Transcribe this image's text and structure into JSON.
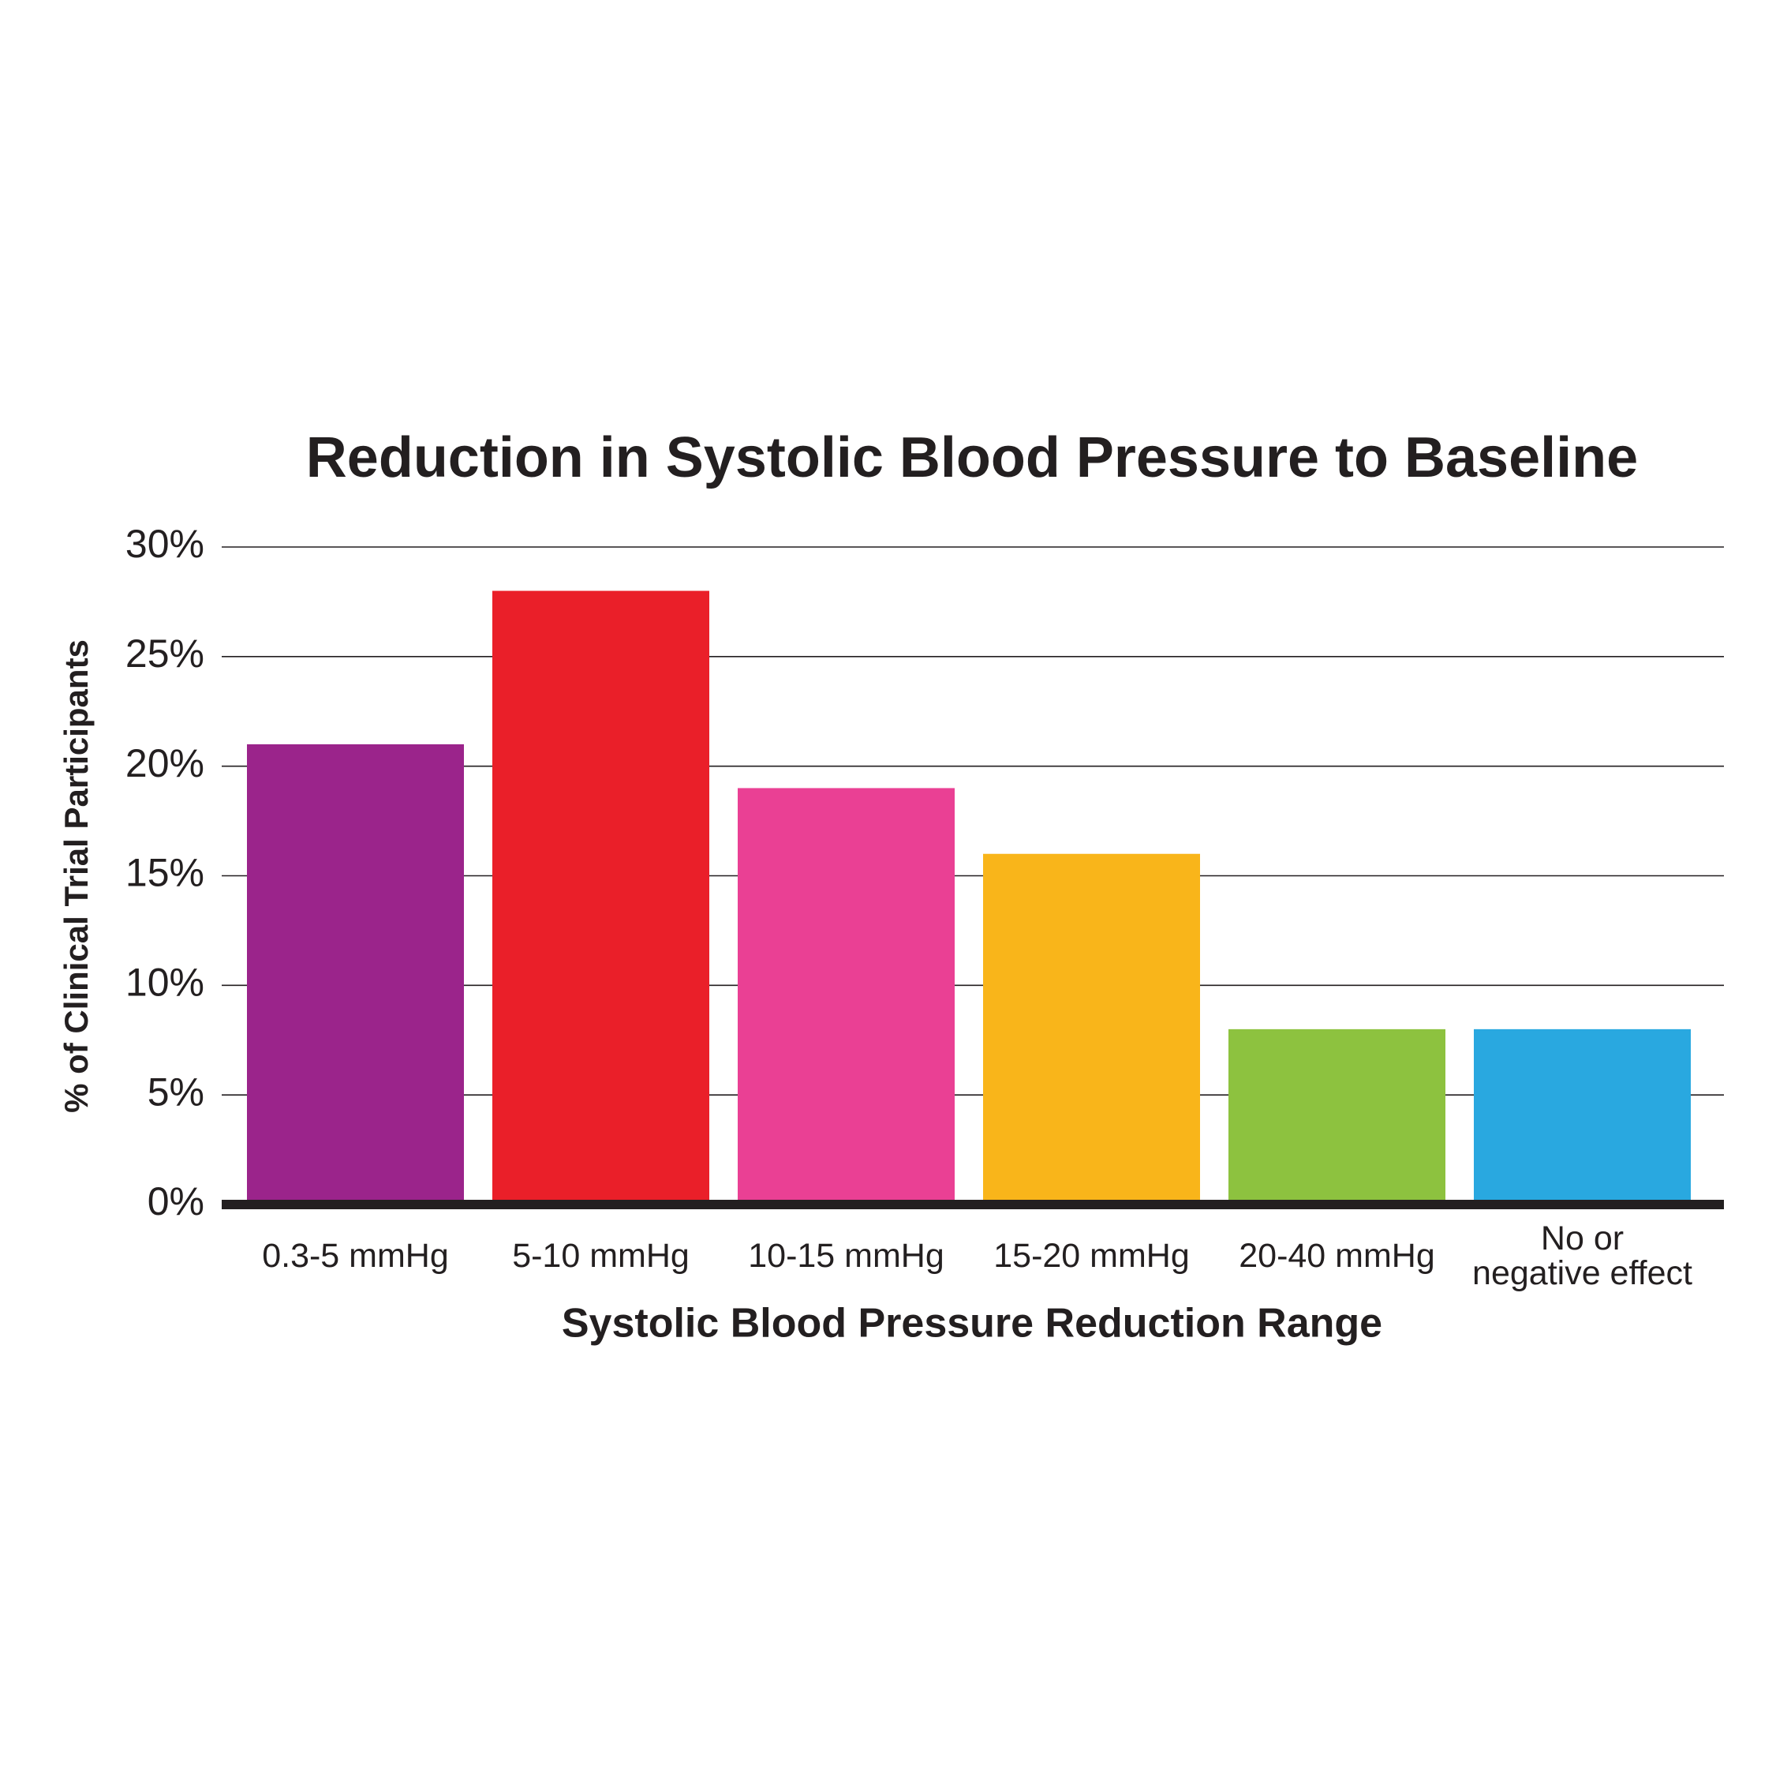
{
  "chart_data": {
    "type": "bar",
    "title": "Reduction in Systolic Blood Pressure to Baseline",
    "x_label": "Systolic Blood Pressure Reduction Range",
    "y_label": "% of Clinical Trial Participants",
    "categories": [
      "0.3-5 mmHg",
      "5-10 mmHg",
      "10-15 mmHg",
      "15-20 mmHg",
      "20-40 mmHg",
      "No or\nnegative effect"
    ],
    "values": [
      21,
      28,
      19,
      16,
      8,
      8
    ],
    "colors": [
      "#9b248b",
      "#ea1f29",
      "#ea4094",
      "#f9b51a",
      "#8dc23f",
      "#29a8e0"
    ],
    "ylim": [
      0,
      30
    ],
    "yticks": [
      {
        "value": 0,
        "label": "0%"
      },
      {
        "value": 5,
        "label": "5%"
      },
      {
        "value": 10,
        "label": "10%"
      },
      {
        "value": 15,
        "label": "15%"
      },
      {
        "value": 20,
        "label": "20%"
      },
      {
        "value": 25,
        "label": "25%"
      },
      {
        "value": 30,
        "label": "30%"
      }
    ],
    "grid": true
  }
}
